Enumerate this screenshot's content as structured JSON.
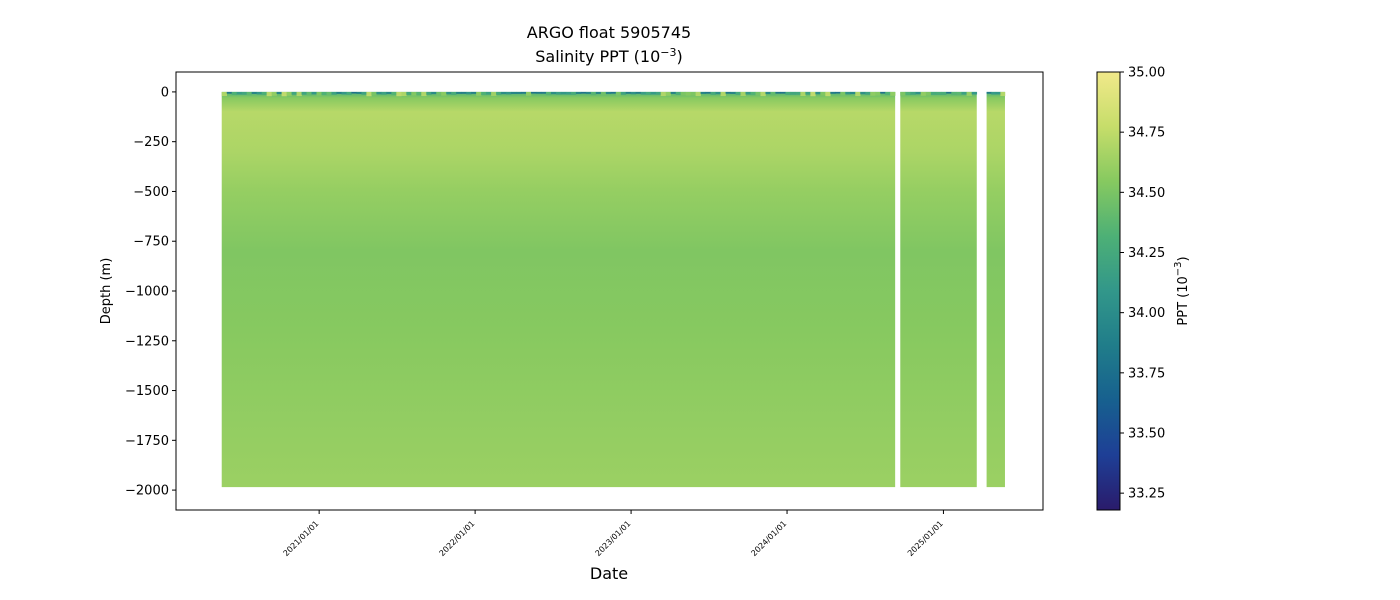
{
  "chart_data": {
    "type": "heatmap",
    "title": "ARGO float 5905745",
    "subtitle_prefix": "Salinity PPT (10",
    "subtitle_exponent": "−3",
    "subtitle_suffix": ")",
    "xlabel": "Date",
    "ylabel": "Depth (m)",
    "x_tick_labels": [
      "2021/01/01",
      "2022/01/01",
      "2023/01/01",
      "2024/01/01",
      "2025/01/01"
    ],
    "x_range": [
      "2020-02-01",
      "2025-08-22"
    ],
    "data_range": [
      "2020-05-18",
      "2025-05-25"
    ],
    "gaps": [
      [
        "2024-09-10",
        "2024-09-22"
      ],
      [
        "2025-03-20",
        "2025-04-12"
      ]
    ],
    "ylim": [
      -2100,
      100
    ],
    "y_ticks": [
      0,
      -250,
      -500,
      -750,
      -1000,
      -1250,
      -1500,
      -1750,
      -2000
    ],
    "y_tick_labels": [
      "0",
      "−250",
      "−500",
      "−750",
      "−1000",
      "−1250",
      "−1500",
      "−1750",
      "−2000"
    ],
    "max_depth": -1985,
    "depth_profile": [
      {
        "depth": 0,
        "salinity": 34.3
      },
      {
        "depth": -30,
        "salinity": 34.55
      },
      {
        "depth": -100,
        "salinity": 34.72
      },
      {
        "depth": -300,
        "salinity": 34.68
      },
      {
        "depth": -500,
        "salinity": 34.6
      },
      {
        "depth": -800,
        "salinity": 34.52
      },
      {
        "depth": -1200,
        "salinity": 34.55
      },
      {
        "depth": -2000,
        "salinity": 34.62
      }
    ],
    "colormap": "haline",
    "colorbar": {
      "label_prefix": "PPT (10",
      "label_exponent": "−3",
      "label_suffix": ")",
      "min": 33.18,
      "max": 35.0,
      "ticks": [
        33.25,
        33.5,
        33.75,
        34.0,
        34.25,
        34.5,
        34.75,
        35.0
      ],
      "tick_labels": [
        "33.25",
        "33.50",
        "33.75",
        "34.00",
        "34.25",
        "34.50",
        "34.75",
        "35.00"
      ],
      "colors": [
        "#2a1b6b",
        "#1e3f96",
        "#17608f",
        "#207d8a",
        "#32978a",
        "#4db076",
        "#86c960",
        "#c6dd6a",
        "#f1e98a"
      ]
    },
    "grid": false
  }
}
